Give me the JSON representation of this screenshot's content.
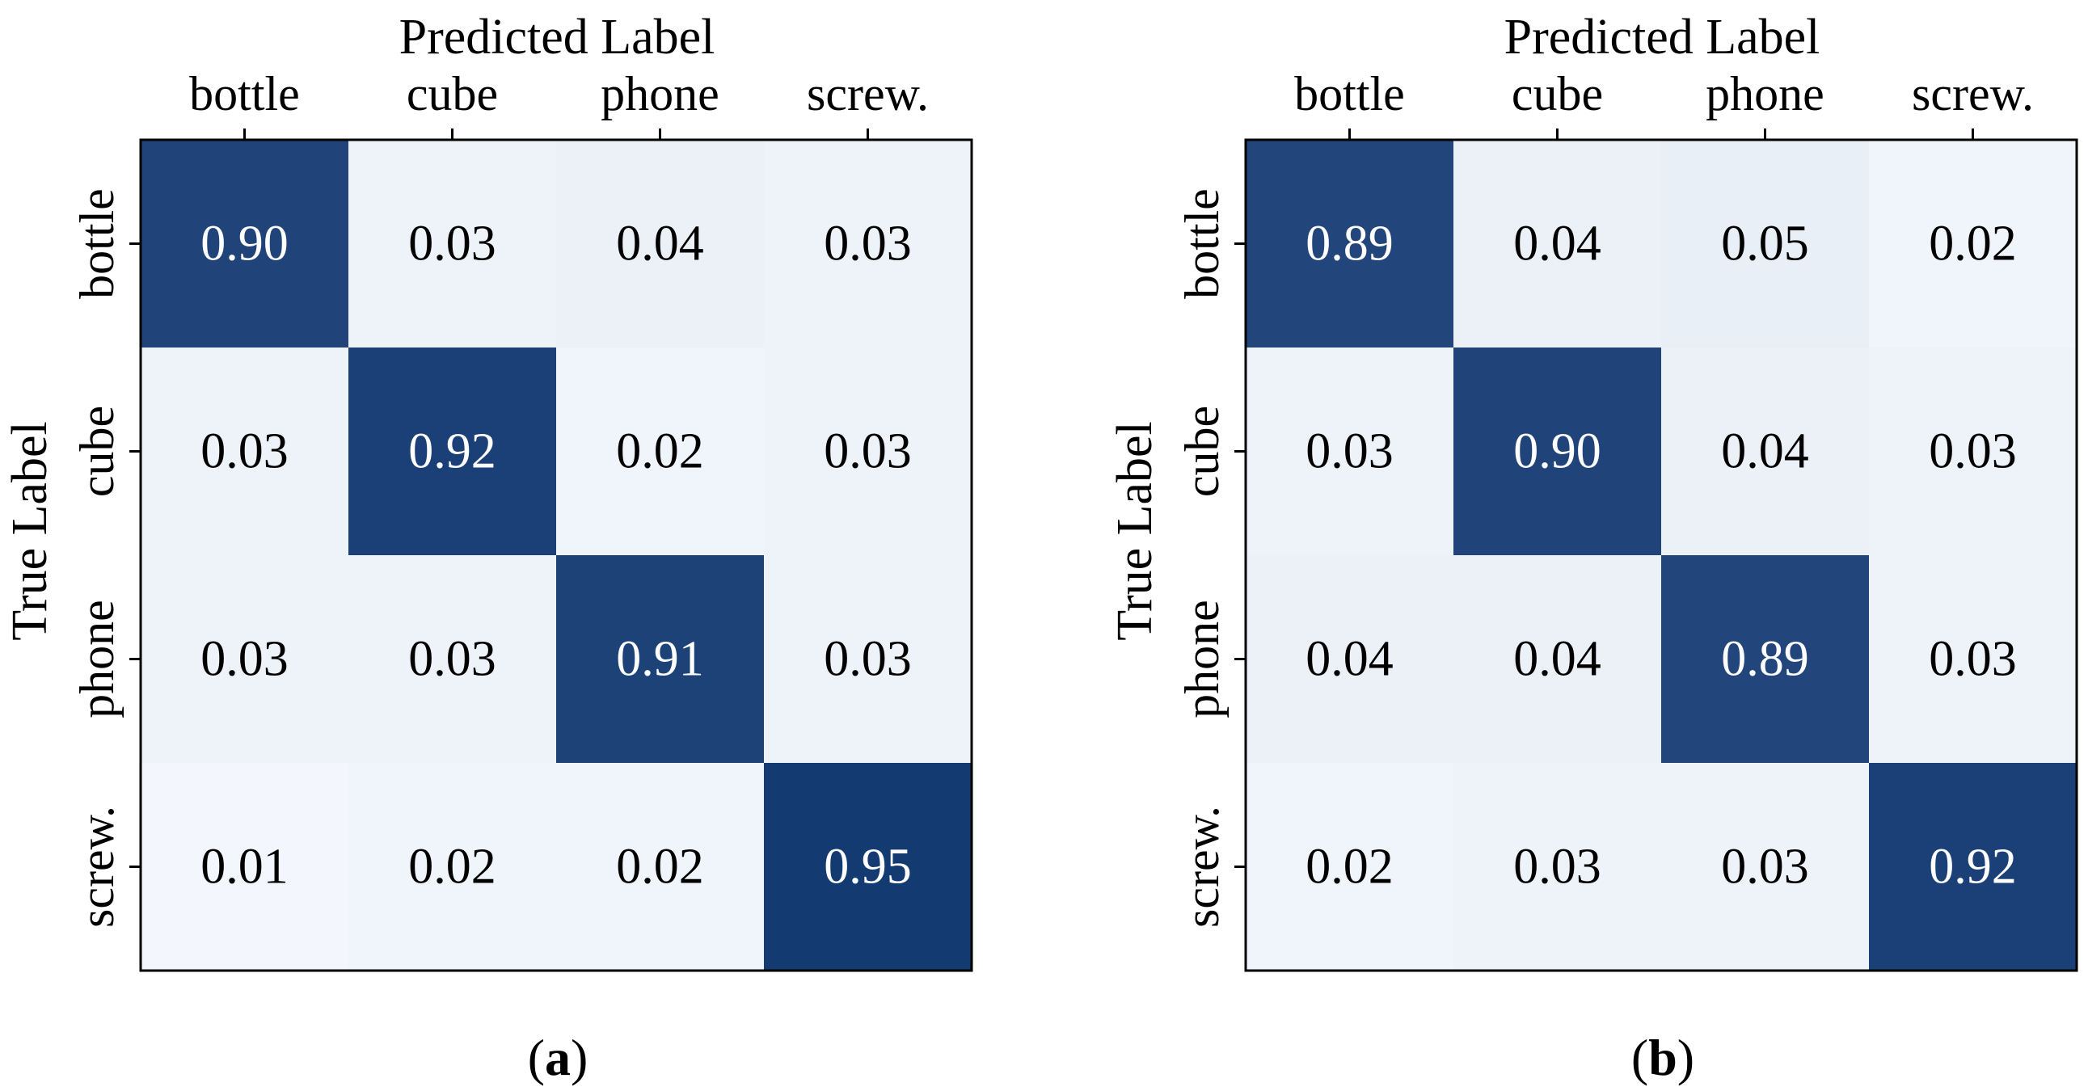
{
  "chart_data": [
    {
      "type": "heatmap",
      "panel_label": "(a)",
      "panel_letter": "a",
      "xlabel": "Predicted Label",
      "ylabel": "True Label",
      "x_categories": [
        "bottle",
        "cube",
        "phone",
        "screw."
      ],
      "y_categories": [
        "bottle",
        "cube",
        "phone",
        "screw."
      ],
      "values": [
        [
          0.9,
          0.03,
          0.04,
          0.03
        ],
        [
          0.03,
          0.92,
          0.02,
          0.03
        ],
        [
          0.03,
          0.03,
          0.91,
          0.03
        ],
        [
          0.01,
          0.02,
          0.02,
          0.95
        ]
      ],
      "value_labels": [
        [
          "0.90",
          "0.03",
          "0.04",
          "0.03"
        ],
        [
          "0.03",
          "0.92",
          "0.02",
          "0.03"
        ],
        [
          "0.03",
          "0.03",
          "0.91",
          "0.03"
        ],
        [
          "0.01",
          "0.02",
          "0.02",
          "0.95"
        ]
      ],
      "colormap": "Blues",
      "vmin": 0.0,
      "vmax": 1.0
    },
    {
      "type": "heatmap",
      "panel_label": "(b)",
      "panel_letter": "b",
      "xlabel": "Predicted Label",
      "ylabel": "True Label",
      "x_categories": [
        "bottle",
        "cube",
        "phone",
        "screw."
      ],
      "y_categories": [
        "bottle",
        "cube",
        "phone",
        "screw."
      ],
      "values": [
        [
          0.89,
          0.04,
          0.05,
          0.02
        ],
        [
          0.03,
          0.9,
          0.04,
          0.03
        ],
        [
          0.04,
          0.04,
          0.89,
          0.03
        ],
        [
          0.02,
          0.03,
          0.03,
          0.92
        ]
      ],
      "value_labels": [
        [
          "0.89",
          "0.04",
          "0.05",
          "0.02"
        ],
        [
          "0.03",
          "0.90",
          "0.04",
          "0.03"
        ],
        [
          "0.04",
          "0.04",
          "0.89",
          "0.03"
        ],
        [
          "0.02",
          "0.03",
          "0.03",
          "0.92"
        ]
      ],
      "colormap": "Blues",
      "vmin": 0.0,
      "vmax": 1.0
    }
  ],
  "colors": {
    "low": "#f5f9fe",
    "high": "#08306b",
    "light_text": "#ffffff",
    "dark_text": "#000000"
  }
}
